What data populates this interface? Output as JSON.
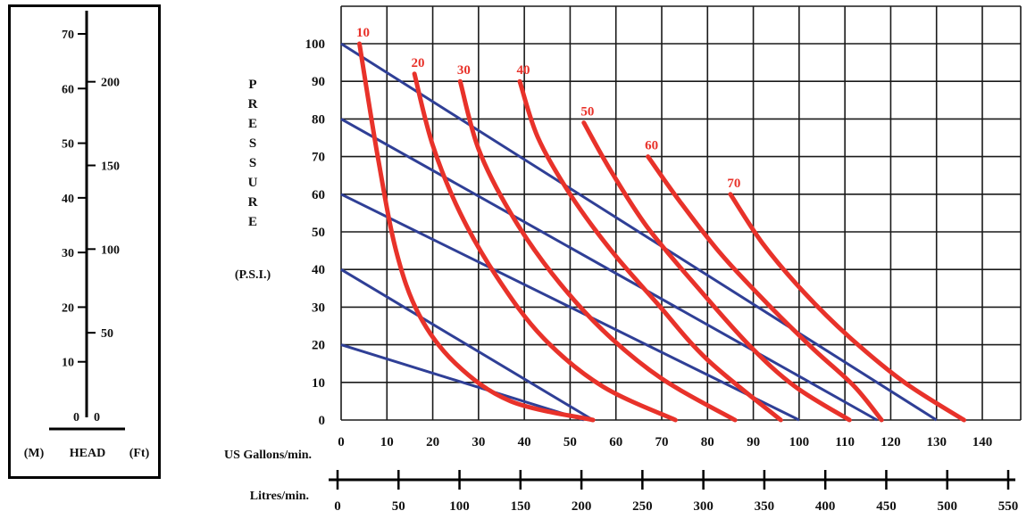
{
  "head_scale": {
    "meters_ticks": [
      {
        "label": "70",
        "value": 70
      },
      {
        "label": "60",
        "value": 60
      },
      {
        "label": "50",
        "value": 50
      },
      {
        "label": "40",
        "value": 40
      },
      {
        "label": "30",
        "value": 30
      },
      {
        "label": "20",
        "value": 20
      },
      {
        "label": "10",
        "value": 10
      },
      {
        "label": "0",
        "value": 0
      }
    ],
    "feet_ticks": [
      {
        "label": "200",
        "value": 200
      },
      {
        "label": "150",
        "value": 150
      },
      {
        "label": "100",
        "value": 100
      },
      {
        "label": "50",
        "value": 50
      },
      {
        "label": "0",
        "value": 0
      }
    ],
    "caption": {
      "m": "(M)",
      "head": "HEAD",
      "ft": "(Ft)"
    }
  },
  "chart_data": {
    "type": "line",
    "title": "",
    "ylabel_letters": [
      "P",
      "R",
      "E",
      "S",
      "S",
      "U",
      "R",
      "E"
    ],
    "ylabel_unit": "(P.S.I.)",
    "xlabel_us": "US Gallons/min.",
    "xlabel_litres": "Litres/min.",
    "xlim_usgpm": [
      0,
      140
    ],
    "ylim_psi": [
      0,
      100
    ],
    "y_ticks": [
      "0",
      "10",
      "20",
      "30",
      "40",
      "50",
      "60",
      "70",
      "80",
      "90",
      "100"
    ],
    "x_ticks_us": [
      "0",
      "10",
      "20",
      "30",
      "40",
      "50",
      "60",
      "70",
      "80",
      "90",
      "100",
      "110",
      "120",
      "130",
      "140"
    ],
    "x_ticks_litres": [
      "0",
      "50",
      "100",
      "150",
      "200",
      "250",
      "300",
      "350",
      "400",
      "450",
      "500",
      "550"
    ],
    "air_pressure_lines": [
      {
        "color": "#2f3f96",
        "points": [
          [
            0,
            100
          ],
          [
            130,
            0
          ]
        ]
      },
      {
        "color": "#2f3f96",
        "points": [
          [
            0,
            80
          ],
          [
            117,
            0
          ]
        ]
      },
      {
        "color": "#2f3f96",
        "points": [
          [
            0,
            60
          ],
          [
            100,
            0
          ]
        ]
      },
      {
        "color": "#2f3f96",
        "points": [
          [
            0,
            40
          ],
          [
            55,
            0
          ]
        ]
      },
      {
        "color": "#2f3f96",
        "points": [
          [
            0,
            20
          ],
          [
            53,
            0
          ]
        ]
      }
    ],
    "air_consumption_curves": [
      {
        "label": "10",
        "color": "#e8322a",
        "points": [
          [
            4,
            100
          ],
          [
            8,
            70
          ],
          [
            12,
            45
          ],
          [
            17,
            28
          ],
          [
            25,
            15
          ],
          [
            37,
            5
          ],
          [
            55,
            0
          ]
        ]
      },
      {
        "label": "20",
        "color": "#e8322a",
        "points": [
          [
            16,
            92
          ],
          [
            20,
            73
          ],
          [
            26,
            55
          ],
          [
            34,
            38
          ],
          [
            44,
            22
          ],
          [
            57,
            9
          ],
          [
            73,
            0
          ]
        ]
      },
      {
        "label": "30",
        "color": "#e8322a",
        "points": [
          [
            26,
            90
          ],
          [
            30,
            72
          ],
          [
            37,
            55
          ],
          [
            46,
            39
          ],
          [
            57,
            24
          ],
          [
            70,
            11
          ],
          [
            86,
            0
          ]
        ]
      },
      {
        "label": "40",
        "color": "#e8322a",
        "points": [
          [
            39,
            90
          ],
          [
            43,
            75
          ],
          [
            50,
            60
          ],
          [
            59,
            45
          ],
          [
            69,
            31
          ],
          [
            80,
            16
          ],
          [
            96,
            0
          ]
        ]
      },
      {
        "label": "50",
        "color": "#e8322a",
        "points": [
          [
            53,
            79
          ],
          [
            59,
            66
          ],
          [
            67,
            51
          ],
          [
            78,
            35
          ],
          [
            89,
            20
          ],
          [
            99,
            9
          ],
          [
            111,
            0
          ]
        ]
      },
      {
        "label": "60",
        "color": "#e8322a",
        "points": [
          [
            67,
            70
          ],
          [
            74,
            58
          ],
          [
            83,
            44
          ],
          [
            93,
            31
          ],
          [
            103,
            19
          ],
          [
            112,
            9
          ],
          [
            118,
            0
          ]
        ]
      },
      {
        "label": "70",
        "color": "#e8322a",
        "points": [
          [
            85,
            60
          ],
          [
            92,
            47
          ],
          [
            101,
            34
          ],
          [
            111,
            22
          ],
          [
            123,
            10
          ],
          [
            136,
            0
          ]
        ]
      }
    ]
  }
}
